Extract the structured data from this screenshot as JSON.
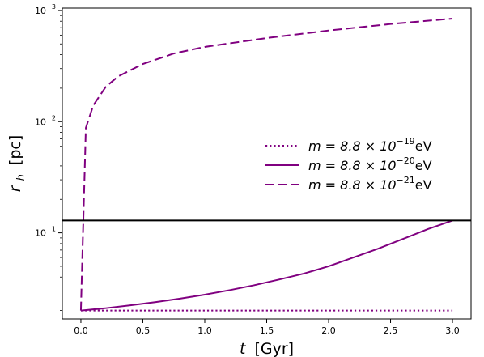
{
  "chart_data": {
    "type": "line",
    "xlabel_var": "t",
    "xlabel_unit": "[Gyr]",
    "ylabel_var": "r",
    "ylabel_sub": "h",
    "ylabel_unit": "[pc]",
    "xlim": [
      -0.15,
      3.15
    ],
    "ylim": [
      1.68,
      1050
    ],
    "yscale": "log",
    "grid": false,
    "legend_position": "center-right",
    "x_ticks": [
      {
        "value": 0.0,
        "label": "0.0"
      },
      {
        "value": 0.5,
        "label": "0.5"
      },
      {
        "value": 1.0,
        "label": "1.0"
      },
      {
        "value": 1.5,
        "label": "1.5"
      },
      {
        "value": 2.0,
        "label": "2.0"
      },
      {
        "value": 2.5,
        "label": "2.5"
      },
      {
        "value": 3.0,
        "label": "3.0"
      }
    ],
    "y_ticks": [
      {
        "value": 10,
        "base": "10",
        "exp": "1"
      },
      {
        "value": 100,
        "base": "10",
        "exp": "2"
      },
      {
        "value": 1000,
        "base": "10",
        "exp": "3"
      }
    ],
    "series": [
      {
        "name_lhs": "m = 8.8 × 10",
        "name_exp": "−19",
        "name_unit": "eV",
        "style": "dotted",
        "color": "#800080",
        "x": [
          0.0,
          1.0,
          2.0,
          3.0
        ],
        "y": [
          2.0,
          2.0,
          2.0,
          2.0
        ]
      },
      {
        "name_lhs": "m = 8.8 × 10",
        "name_exp": "−20",
        "name_unit": "eV",
        "style": "solid",
        "color": "#800080",
        "x": [
          0.0,
          0.2,
          0.4,
          0.6,
          0.8,
          1.0,
          1.2,
          1.4,
          1.6,
          1.8,
          2.0,
          2.2,
          2.4,
          2.6,
          2.8,
          3.0
        ],
        "y": [
          2.0,
          2.1,
          2.23,
          2.38,
          2.56,
          2.78,
          3.05,
          3.38,
          3.8,
          4.3,
          5.0,
          6.0,
          7.2,
          8.8,
          10.8,
          12.9
        ]
      },
      {
        "name_lhs": "m = 8.8 × 10",
        "name_exp": "−21",
        "name_unit": "eV",
        "style": "dashed",
        "color": "#800080",
        "x": [
          0.0,
          0.04,
          0.1,
          0.2,
          0.3,
          0.5,
          0.75,
          1.0,
          1.5,
          2.0,
          2.5,
          3.0
        ],
        "y": [
          2.0,
          88,
          140,
          205,
          255,
          330,
          410,
          470,
          565,
          660,
          755,
          845
        ]
      }
    ],
    "hline": {
      "y": 12.9,
      "color": "#000000"
    }
  }
}
